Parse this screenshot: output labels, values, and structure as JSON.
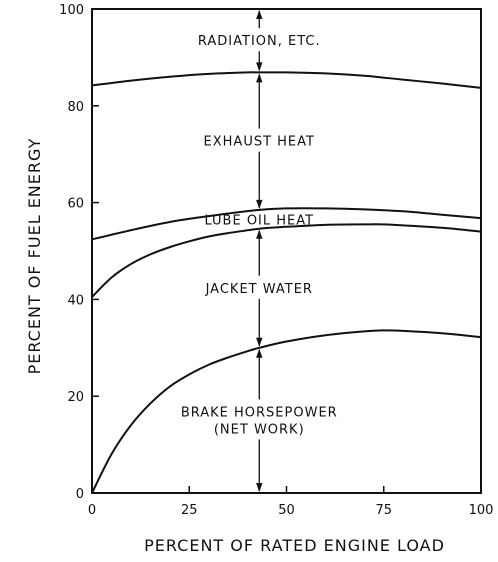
{
  "chart_data": {
    "type": "area",
    "xlabel": "PERCENT OF RATED ENGINE LOAD",
    "ylabel": "PERCENT OF FUEL ENERGY",
    "xlim": [
      0,
      100
    ],
    "ylim": [
      0,
      100
    ],
    "x_ticks": [
      "0",
      "25",
      "50",
      "75",
      "100"
    ],
    "y_ticks": [
      "0",
      "20",
      "40",
      "60",
      "80",
      "100"
    ],
    "grid": false,
    "stacking": "cumulative",
    "boundaries": [
      {
        "upper_edge_of": "BRAKE HORSEPOWER",
        "x": [
          0,
          5,
          10,
          15,
          20,
          25,
          30,
          35,
          40,
          43,
          50,
          60,
          70,
          75,
          80,
          90,
          100
        ],
        "y": [
          0,
          8,
          14,
          18.5,
          22,
          24.5,
          26.5,
          28,
          29.3,
          30,
          31.3,
          32.6,
          33.4,
          33.6,
          33.5,
          33,
          32.2
        ]
      },
      {
        "upper_edge_of": "JACKET WATER",
        "x": [
          0,
          5,
          10,
          15,
          20,
          25,
          30,
          35,
          43,
          50,
          60,
          70,
          75,
          80,
          90,
          100
        ],
        "y": [
          40.5,
          44.5,
          47.3,
          49.3,
          50.8,
          52,
          53,
          53.7,
          54.6,
          55,
          55.4,
          55.5,
          55.5,
          55.3,
          54.8,
          54
        ]
      },
      {
        "upper_edge_of": "LUBE OIL HEAT",
        "x": [
          0,
          10,
          20,
          30,
          43,
          50,
          60,
          70,
          80,
          90,
          100
        ],
        "y": [
          52.4,
          54.3,
          56,
          57.2,
          58.5,
          58.8,
          58.8,
          58.6,
          58.2,
          57.5,
          56.8
        ]
      },
      {
        "upper_edge_of": "EXHAUST HEAT",
        "x": [
          0,
          10,
          20,
          30,
          40,
          43,
          50,
          60,
          70,
          80,
          90,
          100
        ],
        "y": [
          84.2,
          85.2,
          86,
          86.6,
          86.9,
          86.9,
          86.9,
          86.7,
          86.2,
          85.4,
          84.6,
          83.7
        ]
      },
      {
        "upper_edge_of": "RADIATION, ETC.",
        "x": [
          0,
          100
        ],
        "y": [
          100,
          100
        ]
      }
    ],
    "series": [
      {
        "name": "BRAKE HORSEPOWER (NET WORK)",
        "label_lines": [
          "BRAKE HORSEPOWER",
          "(NET WORK)"
        ]
      },
      {
        "name": "JACKET WATER",
        "label_lines": [
          "JACKET WATER"
        ]
      },
      {
        "name": "LUBE OIL HEAT",
        "label_lines": [
          "LUBE OIL HEAT"
        ]
      },
      {
        "name": "EXHAUST HEAT",
        "label_lines": [
          "EXHAUST HEAT"
        ]
      },
      {
        "name": "RADIATION, ETC.",
        "label_lines": [
          "RADIATION, ETC."
        ]
      }
    ],
    "reference_load": 43
  }
}
